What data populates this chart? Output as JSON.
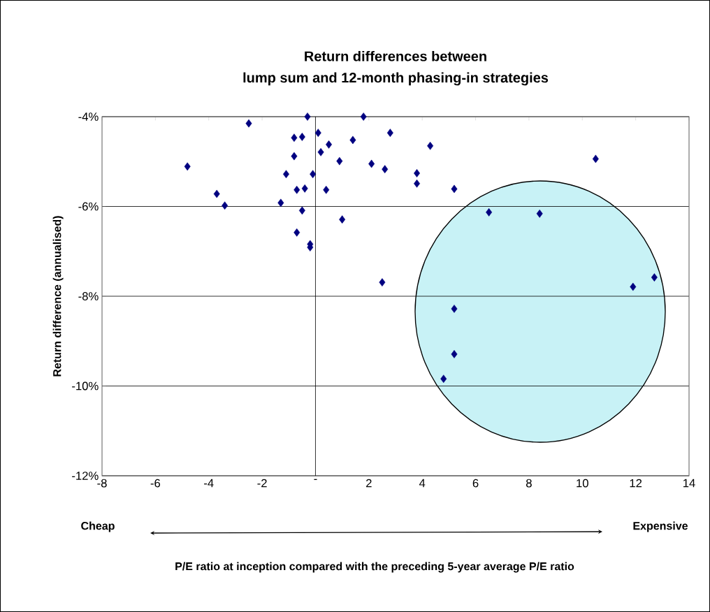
{
  "chart_data": {
    "type": "scatter",
    "title": "Return differences between\nlump sum and 12-month phasing-in strategies",
    "ylabel": "Return difference (annualised)",
    "annotations": [
      "Cheap",
      "Expensive",
      "P/E ratio at inception compared with the preceding 5-year average P/E ratio"
    ],
    "x": [
      -4.8,
      -2.5,
      -0.3,
      1.8,
      -0.8,
      -0.5,
      0.1,
      2.8,
      0.5,
      1.4,
      0.2,
      -0.8,
      0.9,
      2.1,
      2.6,
      -1.1,
      -0.1,
      -3.7,
      -0.7,
      -0.4,
      0.4,
      -3.4,
      -1.3,
      -0.5,
      1.0,
      -0.7,
      -0.2,
      -0.2,
      2.5,
      4.3,
      10.5,
      3.8,
      3.8,
      5.2,
      6.5,
      8.4,
      11.9,
      12.7,
      5.2,
      5.2,
      4.8
    ],
    "values": [
      -5.11,
      -4.15,
      -4.0,
      -4.0,
      -4.47,
      -4.45,
      -4.36,
      -4.36,
      -4.62,
      -4.52,
      -4.79,
      -4.88,
      -4.99,
      -5.05,
      -5.17,
      -5.28,
      -5.28,
      -5.72,
      -5.63,
      -5.6,
      -5.63,
      -5.98,
      -5.92,
      -6.09,
      -6.29,
      -6.58,
      -6.84,
      -6.91,
      -7.69,
      -4.65,
      -4.94,
      -5.26,
      -5.49,
      -5.61,
      -6.13,
      -6.16,
      -7.79,
      -7.58,
      -8.28,
      -9.29,
      -9.84
    ],
    "color": "#000080",
    "marker": "diamond",
    "xlim": [
      -8,
      14
    ],
    "ylim": [
      -12,
      -4
    ],
    "xticks": [
      -8,
      -6,
      -4,
      -2,
      {
        "value": 0,
        "label": "-"
      },
      2,
      4,
      6,
      8,
      10,
      12,
      14
    ],
    "yticks": [
      {
        "value": -12,
        "label": "-12%"
      },
      {
        "value": -10,
        "label": "-10%"
      },
      {
        "value": -8,
        "label": "-8%"
      },
      {
        "value": -6,
        "label": "-6%"
      },
      {
        "value": -4,
        "label": "-4%"
      }
    ],
    "grid": "y",
    "ref_lines": [
      {
        "axis": "x",
        "value": 0,
        "color": "#000000"
      }
    ]
  }
}
